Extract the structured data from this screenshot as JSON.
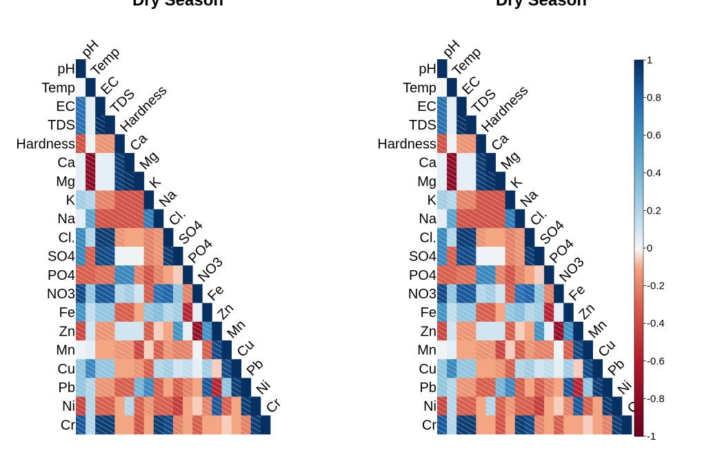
{
  "chart_data": [
    {
      "type": "heatmap",
      "title": "Dry Season",
      "shape": "lower-triangle",
      "variables": [
        "pH",
        "Temp",
        "EC",
        "TDS",
        "Hardness",
        "Ca",
        "Mg",
        "K",
        "Na",
        "Cl.",
        "SO4",
        "PO4",
        "NO3",
        "Fe",
        "Zn",
        "Mn",
        "Cu",
        "Pb",
        "Ni",
        "Cr"
      ],
      "value_range": [
        -1,
        1
      ],
      "matrix": [
        [
          1
        ],
        [
          0,
          1
        ],
        [
          0.75,
          0.05,
          1
        ],
        [
          0.75,
          0.05,
          0.99,
          1
        ],
        [
          -0.35,
          0.02,
          -0.15,
          -0.15,
          1
        ],
        [
          0.05,
          -0.8,
          0.05,
          0.05,
          0.95,
          1
        ],
        [
          0.05,
          -0.8,
          0.05,
          0.05,
          0.95,
          0.99,
          1
        ],
        [
          0.25,
          0.2,
          -0.2,
          -0.2,
          -0.35,
          -0.35,
          -0.35,
          1
        ],
        [
          0.05,
          0.5,
          -0.35,
          -0.35,
          -0.35,
          -0.35,
          -0.35,
          0.7,
          1
        ],
        [
          0.65,
          0.2,
          0.95,
          0.95,
          -0.15,
          -0.1,
          -0.1,
          -0.2,
          -0.15,
          1
        ],
        [
          0.65,
          -0.3,
          0.9,
          0.9,
          0.02,
          0.02,
          0.02,
          -0.2,
          -0.15,
          0.95,
          1
        ],
        [
          -0.3,
          -0.3,
          -0.25,
          -0.25,
          0.65,
          0.65,
          -0.2,
          -0.35,
          -0.2,
          -0.1,
          -0.05,
          1
        ],
        [
          0.9,
          0.3,
          0.85,
          0.85,
          0.2,
          0.25,
          0.1,
          -0.3,
          0.75,
          0.8,
          0.3,
          -0.2,
          1
        ],
        [
          0.6,
          0.15,
          0.3,
          0.3,
          -0.3,
          -0.3,
          -0.1,
          0.3,
          0.35,
          0.2,
          0.25,
          -0.55,
          0.05,
          1
        ],
        [
          -0.4,
          0.1,
          -0.15,
          -0.15,
          0.1,
          0.1,
          0.1,
          -0.3,
          -0.05,
          -0.1,
          0.6,
          0.05,
          -0.75,
          0.6,
          1
        ],
        [
          0.02,
          0.05,
          -0.1,
          -0.1,
          -0.15,
          -0.15,
          -0.4,
          -0.05,
          -0.3,
          -0.15,
          -0.2,
          -0.2,
          0.02,
          -0.3,
          0.9,
          1
        ],
        [
          0.3,
          0.65,
          0.3,
          0.3,
          -0.1,
          -0.1,
          -0.15,
          -0.3,
          0.2,
          0.25,
          0.1,
          0.15,
          0.05,
          0.25,
          -0.05,
          0.9,
          1
        ],
        [
          0.3,
          0.2,
          -0.15,
          -0.15,
          -0.3,
          -0.3,
          0.4,
          0.65,
          -0.3,
          -0.1,
          -0.3,
          -0.2,
          -0.1,
          0.85,
          -0.55,
          0.3,
          0.95,
          1
        ],
        [
          -0.4,
          0.2,
          -0.3,
          -0.3,
          -0.1,
          0.2,
          -0.3,
          -0.15,
          -0.3,
          -0.3,
          -0.45,
          -0.1,
          -0.05,
          -0.2,
          0.85,
          -0.3,
          -0.1,
          0.95,
          1
        ],
        [
          0.85,
          0.2,
          0.95,
          0.95,
          -0.1,
          -0.1,
          -0.35,
          -0.1,
          0.95,
          0.9,
          -0.2,
          -0.1,
          -0.3,
          -0.1,
          -0.1,
          -0.05,
          -0.1,
          -0.2,
          0.95,
          1
        ]
      ]
    },
    {
      "type": "heatmap",
      "title": "Dry Season",
      "shape": "lower-triangle",
      "variables": [
        "pH",
        "Temp",
        "EC",
        "TDS",
        "Hardness",
        "Ca",
        "Mg",
        "K",
        "Na",
        "Cl.",
        "SO4",
        "PO4",
        "NO3",
        "Fe",
        "Zn",
        "Mn",
        "Cu",
        "Pb",
        "Ni",
        "Cr"
      ],
      "value_range": [
        -1,
        1
      ],
      "colorbar": {
        "ticks": [
          1,
          0.8,
          0.6,
          0.4,
          0.2,
          0,
          -0.2,
          -0.4,
          -0.6,
          -0.8,
          -1
        ],
        "tick_labels": [
          "1",
          "0.8",
          "0.6",
          "0.4",
          "0.2",
          "0",
          "-0.2",
          "-0.4",
          "-0.6",
          "-0.8",
          "-1"
        ]
      },
      "matrix": [
        [
          1
        ],
        [
          0,
          1
        ],
        [
          0.75,
          0.05,
          1
        ],
        [
          0.75,
          0.05,
          0.99,
          1
        ],
        [
          -0.35,
          0.02,
          -0.15,
          -0.15,
          1
        ],
        [
          0.05,
          -0.8,
          0.05,
          0.05,
          0.95,
          1
        ],
        [
          0.05,
          -0.8,
          0.05,
          0.05,
          0.95,
          0.99,
          1
        ],
        [
          0.25,
          0.2,
          -0.2,
          -0.2,
          -0.35,
          -0.35,
          -0.35,
          1
        ],
        [
          0.05,
          0.5,
          -0.35,
          -0.35,
          -0.35,
          -0.35,
          -0.35,
          0.7,
          1
        ],
        [
          0.65,
          0.2,
          0.95,
          0.95,
          -0.15,
          -0.1,
          -0.1,
          -0.2,
          -0.15,
          1
        ],
        [
          0.65,
          -0.3,
          0.9,
          0.9,
          0.02,
          0.02,
          0.02,
          -0.2,
          -0.15,
          0.95,
          1
        ],
        [
          -0.3,
          -0.3,
          -0.25,
          -0.25,
          0.65,
          0.65,
          -0.2,
          -0.35,
          -0.2,
          -0.1,
          -0.05,
          1
        ],
        [
          0.9,
          0.3,
          0.85,
          0.85,
          0.2,
          0.25,
          0.1,
          -0.3,
          0.75,
          0.8,
          0.3,
          -0.2,
          1
        ],
        [
          0.6,
          0.15,
          0.3,
          0.3,
          -0.3,
          -0.3,
          -0.1,
          0.3,
          0.35,
          0.2,
          0.25,
          -0.55,
          0.05,
          1
        ],
        [
          -0.4,
          0.1,
          -0.15,
          -0.15,
          0.1,
          0.1,
          0.1,
          -0.3,
          -0.05,
          -0.1,
          0.6,
          0.05,
          -0.75,
          0.6,
          1
        ],
        [
          0.02,
          0.05,
          -0.1,
          -0.1,
          -0.15,
          -0.15,
          -0.4,
          -0.05,
          -0.3,
          -0.15,
          -0.2,
          -0.2,
          0.02,
          -0.3,
          0.9,
          1
        ],
        [
          0.3,
          0.65,
          0.3,
          0.3,
          -0.1,
          -0.1,
          -0.15,
          -0.3,
          0.2,
          0.25,
          0.1,
          0.15,
          0.05,
          0.25,
          -0.05,
          0.9,
          1
        ],
        [
          0.3,
          0.2,
          -0.15,
          -0.15,
          -0.3,
          -0.3,
          0.4,
          0.65,
          -0.3,
          -0.1,
          -0.3,
          -0.2,
          -0.1,
          0.85,
          -0.55,
          0.3,
          0.95,
          1
        ],
        [
          -0.4,
          0.2,
          -0.3,
          -0.3,
          -0.1,
          0.2,
          -0.3,
          -0.15,
          -0.3,
          -0.3,
          -0.45,
          -0.1,
          -0.05,
          -0.2,
          0.85,
          -0.3,
          -0.1,
          0.95,
          1
        ],
        [
          0.85,
          0.2,
          0.95,
          0.95,
          -0.1,
          -0.1,
          -0.35,
          -0.1,
          0.95,
          0.9,
          -0.2,
          -0.1,
          -0.3,
          -0.1,
          -0.1,
          -0.05,
          -0.1,
          -0.2,
          0.95,
          1
        ]
      ]
    }
  ],
  "colors": {
    "negative_strong": "#67001f",
    "negative": "#d6604d",
    "neutral": "#f7f7f7",
    "positive": "#4393c3",
    "positive_strong": "#053061",
    "text": "#000000"
  }
}
